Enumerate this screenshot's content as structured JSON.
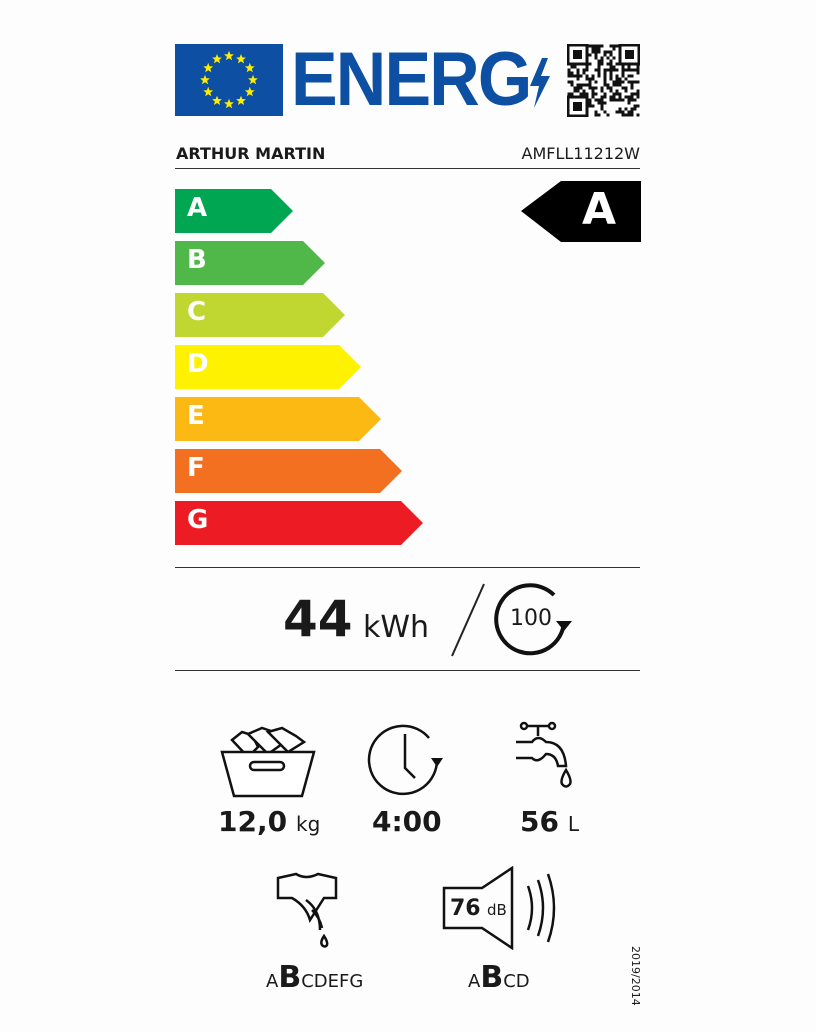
{
  "header": {
    "logo_text": "ENERG",
    "brand": "ARTHUR MARTIN",
    "model": "AMFLL11212W"
  },
  "scale": [
    {
      "letter": "A",
      "color": "#00a651"
    },
    {
      "letter": "B",
      "color": "#50b848"
    },
    {
      "letter": "C",
      "color": "#bfd730"
    },
    {
      "letter": "D",
      "color": "#fff200"
    },
    {
      "letter": "E",
      "color": "#fdb913"
    },
    {
      "letter": "F",
      "color": "#f37021"
    },
    {
      "letter": "G",
      "color": "#ed1c24"
    }
  ],
  "rating": {
    "class": "A"
  },
  "energy": {
    "value": "44",
    "unit": "kWh",
    "cycles": "100"
  },
  "specs": {
    "capacity": {
      "value": "12,0",
      "unit": "kg"
    },
    "duration": {
      "value": "4:00"
    },
    "water": {
      "value": "56",
      "unit": "L"
    },
    "spin_class": {
      "before": "A",
      "selected": "B",
      "after": "CDEFG"
    },
    "noise": {
      "value": "76",
      "unit": "dB",
      "before": "A",
      "selected": "B",
      "after": "CD"
    }
  },
  "regulation": "2019/2014"
}
